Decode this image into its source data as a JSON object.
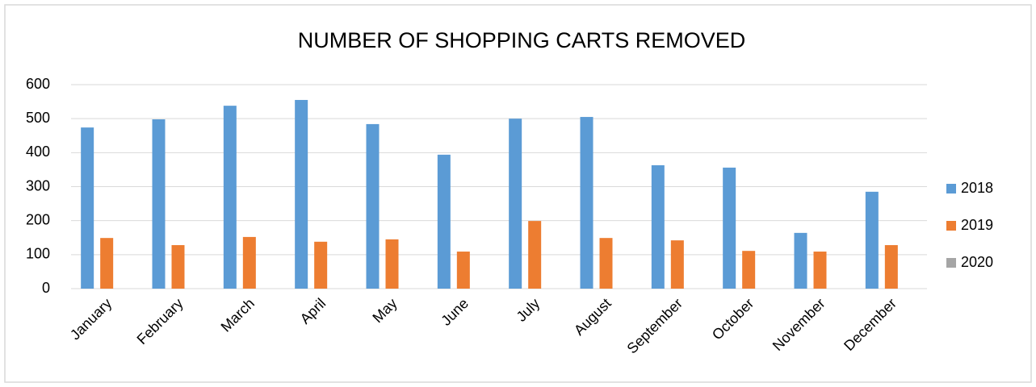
{
  "chart_data": {
    "type": "bar",
    "title": "NUMBER OF SHOPPING CARTS REMOVED",
    "categories": [
      "January",
      "February",
      "March",
      "April",
      "May",
      "June",
      "July",
      "August",
      "September",
      "October",
      "November",
      "December"
    ],
    "series": [
      {
        "name": "2018",
        "color": "#5b9bd5",
        "values": [
          474,
          498,
          538,
          555,
          484,
          394,
          500,
          505,
          363,
          356,
          164,
          285
        ]
      },
      {
        "name": "2019",
        "color": "#ed7d31",
        "values": [
          149,
          128,
          152,
          138,
          145,
          109,
          199,
          149,
          142,
          111,
          109,
          128
        ]
      },
      {
        "name": "2020",
        "color": "#a5a5a5",
        "values": [
          null,
          null,
          null,
          null,
          null,
          null,
          null,
          null,
          null,
          null,
          null,
          null
        ]
      }
    ],
    "ylim": [
      0,
      600
    ],
    "yticks": [
      0,
      100,
      200,
      300,
      400,
      500,
      600
    ],
    "grid": true,
    "legend": "right"
  }
}
